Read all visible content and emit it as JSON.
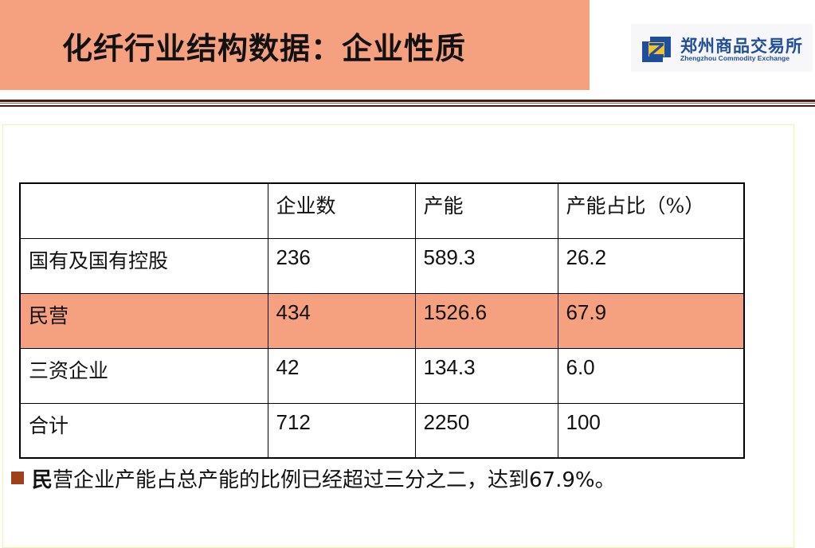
{
  "title": "化纤行业结构数据：企业性质",
  "logo": {
    "cn": "郑州商品交易所",
    "en": "Zhengzhou Commodity Exchange"
  },
  "table": {
    "headers": [
      "",
      "企业数",
      "产能",
      "产能占比（%）"
    ],
    "rows": [
      [
        "国有及国有控股",
        "236",
        "589.3",
        "26.2"
      ],
      [
        "民营",
        "434",
        "1526.6",
        "67.9"
      ],
      [
        "三资企业",
        "42",
        "134.3",
        "6.0"
      ],
      [
        "合计",
        "712",
        "2250",
        "100"
      ]
    ],
    "highlight_color": "#f5a07e"
  },
  "note": {
    "bold": "民",
    "rest": "营企业产能占总产能的比例已经超过三分之二，达到67.9%。"
  }
}
